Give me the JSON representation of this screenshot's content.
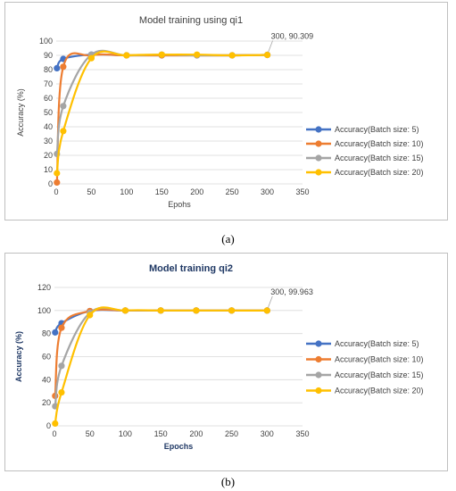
{
  "chart_data": [
    {
      "type": "line",
      "title": "Model training using qi1",
      "caption": "(a)",
      "xlabel": "Epohs",
      "ylabel": "Accuracy (%)",
      "xlim": [
        0,
        350
      ],
      "ylim": [
        0,
        100
      ],
      "xticks": [
        0,
        50,
        100,
        150,
        200,
        250,
        300,
        350
      ],
      "yticks": [
        0,
        10,
        20,
        30,
        40,
        50,
        60,
        70,
        80,
        90,
        100
      ],
      "grid": "horizontal",
      "legend": "right",
      "annotation": {
        "text": "300, 90.309",
        "x": 300,
        "y": 90.309
      },
      "series": [
        {
          "name": "Accuracy(Batch size: 5)",
          "color": "#4472c4",
          "points": [
            [
              1,
              81
            ],
            [
              10,
              87.5
            ],
            [
              50,
              90.5
            ],
            [
              100,
              90
            ],
            [
              150,
              90
            ],
            [
              200,
              90
            ],
            [
              250,
              90
            ],
            [
              300,
              90.309
            ]
          ]
        },
        {
          "name": "Accuracy(Batch size: 10)",
          "color": "#ed7d31",
          "points": [
            [
              1,
              1
            ],
            [
              10,
              82
            ],
            [
              50,
              90
            ],
            [
              100,
              90
            ],
            [
              150,
              90
            ],
            [
              200,
              90
            ],
            [
              250,
              90
            ],
            [
              300,
              90.309
            ]
          ]
        },
        {
          "name": "Accuracy(Batch size: 15)",
          "color": "#a5a5a5",
          "points": [
            [
              1,
              21
            ],
            [
              10,
              54.5
            ],
            [
              50,
              90.5
            ],
            [
              100,
              90
            ],
            [
              150,
              90.5
            ],
            [
              200,
              90
            ],
            [
              250,
              90
            ],
            [
              300,
              90.309
            ]
          ]
        },
        {
          "name": "Accuracy(Batch size: 20)",
          "color": "#ffc000",
          "points": [
            [
              1,
              7.5
            ],
            [
              10,
              37
            ],
            [
              50,
              88
            ],
            [
              100,
              90
            ],
            [
              150,
              90.5
            ],
            [
              200,
              90.5
            ],
            [
              250,
              90
            ],
            [
              300,
              90.309
            ]
          ]
        }
      ]
    },
    {
      "type": "line",
      "title": "Model training qi2",
      "caption": "(b)",
      "xlabel": "Epochs",
      "ylabel": "Accuracy (%)",
      "xlim": [
        0,
        350
      ],
      "ylim": [
        0,
        120
      ],
      "xticks": [
        0,
        50,
        100,
        150,
        200,
        250,
        300,
        350
      ],
      "yticks": [
        0,
        20,
        40,
        60,
        80,
        100,
        120
      ],
      "grid": "horizontal",
      "legend": "right",
      "annotation": {
        "text": "300, 99.963",
        "x": 300,
        "y": 99.963
      },
      "series": [
        {
          "name": "Accuracy(Batch size: 5)",
          "color": "#4472c4",
          "points": [
            [
              1,
              81
            ],
            [
              10,
              89
            ],
            [
              50,
              99.5
            ],
            [
              100,
              100
            ],
            [
              150,
              100
            ],
            [
              200,
              100
            ],
            [
              250,
              100
            ],
            [
              300,
              99.963
            ]
          ]
        },
        {
          "name": "Accuracy(Batch size: 10)",
          "color": "#ed7d31",
          "points": [
            [
              1,
              26
            ],
            [
              10,
              85
            ],
            [
              50,
              99.5
            ],
            [
              100,
              100
            ],
            [
              150,
              100
            ],
            [
              200,
              100
            ],
            [
              250,
              100
            ],
            [
              300,
              99.963
            ]
          ]
        },
        {
          "name": "Accuracy(Batch size: 15)",
          "color": "#a5a5a5",
          "points": [
            [
              1,
              17
            ],
            [
              10,
              52
            ],
            [
              50,
              98
            ],
            [
              100,
              100
            ],
            [
              150,
              100
            ],
            [
              200,
              100
            ],
            [
              250,
              100
            ],
            [
              300,
              99.963
            ]
          ]
        },
        {
          "name": "Accuracy(Batch size: 20)",
          "color": "#ffc000",
          "points": [
            [
              1,
              2
            ],
            [
              10,
              29
            ],
            [
              50,
              96
            ],
            [
              100,
              100
            ],
            [
              150,
              100
            ],
            [
              200,
              100
            ],
            [
              250,
              100
            ],
            [
              300,
              99.963
            ]
          ]
        }
      ]
    }
  ]
}
